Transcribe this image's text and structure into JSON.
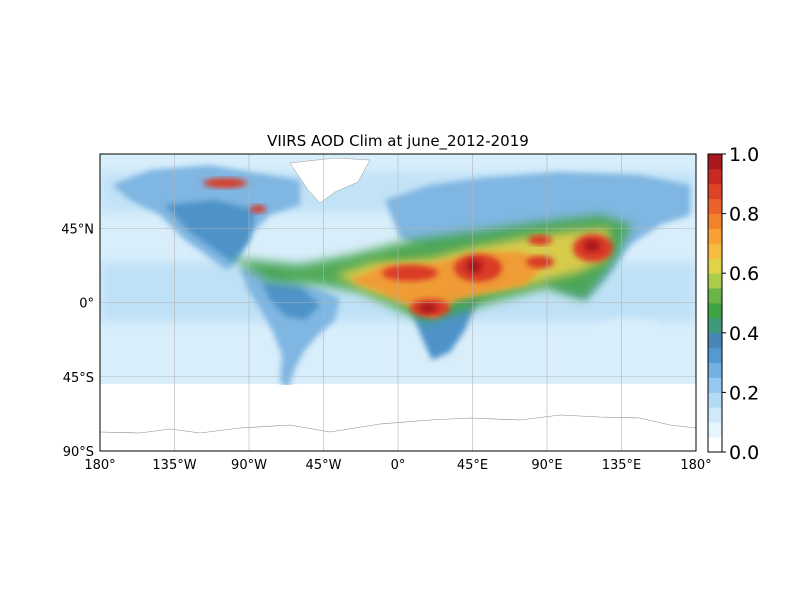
{
  "title": "VIIRS AOD Clim at june_2012-2019",
  "map": {
    "projection": "PlateCarree",
    "lon_range": [
      -180,
      180
    ],
    "lat_range": [
      -90,
      90
    ],
    "gridlines": true,
    "ocean_data_south_limit_lat": -50,
    "x_ticks": [
      {
        "value": -180,
        "label": "180°"
      },
      {
        "value": -135,
        "label": "135°W"
      },
      {
        "value": -90,
        "label": "90°W"
      },
      {
        "value": -45,
        "label": "45°W"
      },
      {
        "value": 0,
        "label": "0°"
      },
      {
        "value": 45,
        "label": "45°E"
      },
      {
        "value": 90,
        "label": "90°E"
      },
      {
        "value": 135,
        "label": "135°E"
      },
      {
        "value": 180,
        "label": "180°"
      }
    ],
    "y_ticks": [
      {
        "value": 45,
        "label": "45°N"
      },
      {
        "value": 0,
        "label": "0°"
      },
      {
        "value": -45,
        "label": "45°S"
      },
      {
        "value": -90,
        "label": "90°S"
      }
    ]
  },
  "colorbar": {
    "range": [
      0,
      1
    ],
    "ticks": [
      {
        "value": 0.0,
        "label": "0.0"
      },
      {
        "value": 0.2,
        "label": "0.2"
      },
      {
        "value": 0.4,
        "label": "0.4"
      },
      {
        "value": 0.6,
        "label": "0.6"
      },
      {
        "value": 0.8,
        "label": "0.8"
      },
      {
        "value": 1.0,
        "label": "1.0"
      }
    ],
    "levels": [
      "#ffffff",
      "#e6f4fd",
      "#cfe9fa",
      "#b4dbf5",
      "#94c8ee",
      "#72b1e0",
      "#5499cf",
      "#4786b6",
      "#3f9a7a",
      "#3ea443",
      "#6bb548",
      "#a9cc4c",
      "#dfd34b",
      "#f6bb41",
      "#f7a036",
      "#f2812e",
      "#e9622a",
      "#dd4327",
      "#c92a23",
      "#a8191e"
    ]
  },
  "colors": {
    "ocean_low": "#d8eefb",
    "ocean_mid": "#bde0f6",
    "land_mid": "#7fb6e2",
    "land_high": "#4e93c8",
    "green": "#45a448",
    "yellow": "#e8cf48",
    "orange": "#f29a35",
    "red": "#d93a26",
    "darkred": "#a8191e",
    "coastline": "#8a8a8a",
    "grid": "#b4b4b4"
  }
}
